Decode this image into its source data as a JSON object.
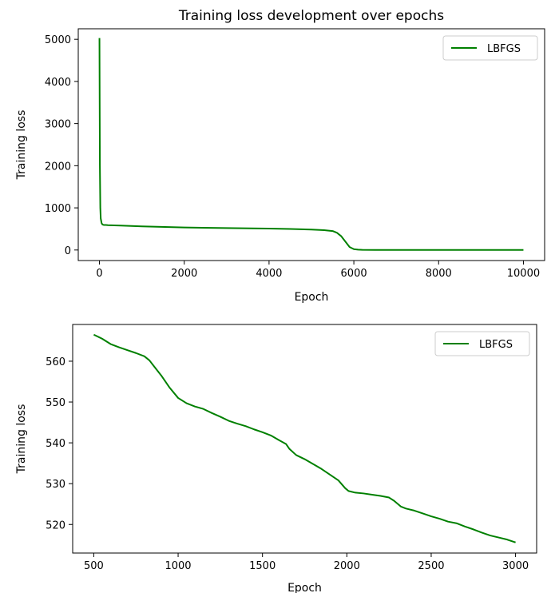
{
  "chart_data": [
    {
      "type": "line",
      "title": "Training loss development over epochs",
      "xlabel": "Epoch",
      "ylabel": "Training loss",
      "xlim": [
        -500,
        10500
      ],
      "ylim": [
        -250,
        5250
      ],
      "xticks": [
        0,
        2000,
        4000,
        6000,
        8000,
        10000
      ],
      "xtick_labels": [
        "0",
        "2000",
        "4000",
        "6000",
        "8000",
        "10000"
      ],
      "yticks": [
        0,
        1000,
        2000,
        3000,
        4000,
        5000
      ],
      "ytick_labels": [
        "0",
        "1000",
        "2000",
        "3000",
        "4000",
        "5000"
      ],
      "grid": false,
      "legend": "top-right",
      "series": [
        {
          "name": "LBFGS",
          "color": "#008000",
          "x": [
            0,
            5,
            10,
            20,
            30,
            50,
            70,
            100,
            150,
            200,
            500,
            1000,
            2000,
            3000,
            4000,
            4500,
            5000,
            5300,
            5500,
            5600,
            5700,
            5800,
            5900,
            6000,
            6100,
            6200,
            6500,
            7000,
            8000,
            9000,
            10000
          ],
          "y": [
            5030,
            3500,
            2000,
            1000,
            750,
            640,
            605,
            595,
            593,
            590,
            580,
            560,
            535,
            520,
            508,
            500,
            485,
            470,
            450,
            410,
            330,
            200,
            70,
            20,
            8,
            4,
            2,
            1,
            0.5,
            0.3,
            0.2
          ]
        }
      ]
    },
    {
      "type": "line",
      "title": "",
      "xlabel": "Epoch",
      "ylabel": "Training loss",
      "xlim": [
        375,
        3125
      ],
      "ylim": [
        513.0,
        569.0
      ],
      "xticks": [
        500,
        1000,
        1500,
        2000,
        2500,
        3000
      ],
      "xtick_labels": [
        "500",
        "1000",
        "1500",
        "2000",
        "2500",
        "3000"
      ],
      "yticks": [
        520,
        530,
        540,
        550,
        560
      ],
      "ytick_labels": [
        "520",
        "530",
        "540",
        "550",
        "560"
      ],
      "grid": false,
      "legend": "top-right",
      "series": [
        {
          "name": "LBFGS",
          "color": "#008000",
          "x": [
            500,
            550,
            600,
            650,
            700,
            750,
            800,
            830,
            860,
            900,
            950,
            1000,
            1050,
            1100,
            1150,
            1200,
            1250,
            1300,
            1350,
            1400,
            1450,
            1500,
            1550,
            1600,
            1640,
            1660,
            1700,
            1750,
            1800,
            1850,
            1900,
            1950,
            1990,
            2010,
            2050,
            2100,
            2150,
            2200,
            2250,
            2280,
            2320,
            2350,
            2400,
            2450,
            2500,
            2550,
            2600,
            2650,
            2700,
            2750,
            2800,
            2850,
            2900,
            2950,
            3000
          ],
          "y": [
            566.5,
            565.5,
            564.2,
            563.4,
            562.7,
            562.0,
            561.2,
            560.2,
            558.6,
            556.5,
            553.5,
            551.0,
            549.7,
            548.9,
            548.3,
            547.3,
            546.4,
            545.4,
            544.7,
            544.1,
            543.3,
            542.6,
            541.8,
            540.6,
            539.7,
            538.5,
            537.0,
            536.0,
            534.8,
            533.6,
            532.2,
            530.8,
            528.9,
            528.2,
            527.8,
            527.6,
            527.3,
            527.0,
            526.6,
            525.8,
            524.4,
            523.9,
            523.4,
            522.7,
            522.0,
            521.4,
            520.7,
            520.3,
            519.5,
            518.8,
            518.0,
            517.3,
            516.8,
            516.3,
            515.6
          ]
        }
      ]
    }
  ]
}
